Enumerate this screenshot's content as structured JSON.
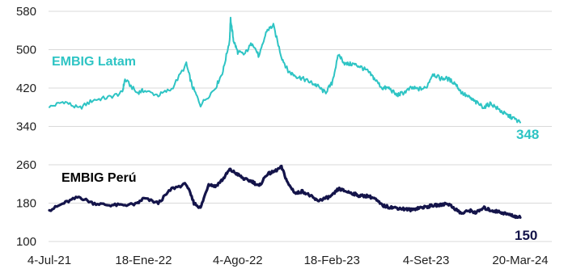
{
  "chart_data": {
    "type": "line",
    "ylim": [
      100,
      580
    ],
    "y_ticks": [
      "580",
      "500",
      "420",
      "340",
      "260",
      "180",
      "100"
    ],
    "x_tick_labels": [
      "4-Jul-21",
      "18-Ene-22",
      "4-Ago-22",
      "18-Feb-23",
      "4-Set-23",
      "20-Mar-24"
    ],
    "grid": true,
    "legend": "inline labels",
    "series": [
      {
        "name": "EMBIG Latam",
        "color": "#2ec4c4",
        "end_label": "348",
        "points": [
          [
            "4-Jul-21",
            380
          ],
          [
            "4-Ago-21",
            392
          ],
          [
            "4-Sep-21",
            377
          ],
          [
            "4-Oct-21",
            395
          ],
          [
            "4-Nov-21",
            400
          ],
          [
            "4-Dic-21",
            410
          ],
          [
            "10-Dic-21",
            438
          ],
          [
            "4-Ene-22",
            410
          ],
          [
            "18-Ene-22",
            415
          ],
          [
            "18-Feb-22",
            405
          ],
          [
            "18-Mar-22",
            418
          ],
          [
            "18-Abr-22",
            470
          ],
          [
            "30-Abr-22",
            425
          ],
          [
            "18-May-22",
            385
          ],
          [
            "18-Jun-22",
            420
          ],
          [
            "4-Jul-22",
            455
          ],
          [
            "18-Jul-22",
            520
          ],
          [
            "20-Jul-22",
            565
          ],
          [
            "26-Jul-22",
            520
          ],
          [
            "4-Ago-22",
            495
          ],
          [
            "18-Ago-22",
            490
          ],
          [
            "4-Sep-22",
            515
          ],
          [
            "18-Sep-22",
            485
          ],
          [
            "4-Oct-22",
            540
          ],
          [
            "18-Oct-22",
            550
          ],
          [
            "4-Nov-22",
            485
          ],
          [
            "18-Nov-22",
            455
          ],
          [
            "4-Dic-22",
            445
          ],
          [
            "18-Dic-22",
            440
          ],
          [
            "4-Ene-23",
            432
          ],
          [
            "18-Ene-23",
            425
          ],
          [
            "4-Feb-23",
            410
          ],
          [
            "18-Feb-23",
            430
          ],
          [
            "4-Mar-23",
            490
          ],
          [
            "18-Mar-23",
            470
          ],
          [
            "4-Abr-23",
            470
          ],
          [
            "18-Abr-23",
            465
          ],
          [
            "4-May-23",
            455
          ],
          [
            "18-May-23",
            440
          ],
          [
            "4-Jun-23",
            420
          ],
          [
            "18-Jun-23",
            420
          ],
          [
            "4-Jul-23",
            405
          ],
          [
            "18-Jul-23",
            410
          ],
          [
            "4-Ago-23",
            420
          ],
          [
            "18-Ago-23",
            418
          ],
          [
            "4-Set-23",
            420
          ],
          [
            "18-Set-23",
            450
          ],
          [
            "4-Oct-23",
            440
          ],
          [
            "18-Oct-23",
            440
          ],
          [
            "4-Nov-23",
            430
          ],
          [
            "18-Nov-23",
            410
          ],
          [
            "4-Dic-23",
            400
          ],
          [
            "18-Dic-23",
            390
          ],
          [
            "4-Ene-24",
            380
          ],
          [
            "18-Ene-24",
            388
          ],
          [
            "4-Feb-24",
            375
          ],
          [
            "18-Feb-24",
            365
          ],
          [
            "4-Mar-24",
            358
          ],
          [
            "20-Mar-24",
            348
          ]
        ]
      },
      {
        "name": "EMBIG Perú",
        "color": "#14144a",
        "end_label": "150",
        "points": [
          [
            "4-Jul-21",
            165
          ],
          [
            "4-Ago-21",
            180
          ],
          [
            "4-Sep-21",
            193
          ],
          [
            "4-Oct-21",
            180
          ],
          [
            "4-Nov-21",
            176
          ],
          [
            "4-Dic-21",
            176
          ],
          [
            "4-Ene-22",
            178
          ],
          [
            "18-Ene-22",
            190
          ],
          [
            "18-Feb-22",
            180
          ],
          [
            "18-Mar-22",
            210
          ],
          [
            "18-Abr-22",
            220
          ],
          [
            "4-May-22",
            180
          ],
          [
            "18-May-22",
            170
          ],
          [
            "4-Jun-22",
            220
          ],
          [
            "18-Jun-22",
            215
          ],
          [
            "4-Jul-22",
            230
          ],
          [
            "18-Jul-22",
            250
          ],
          [
            "4-Ago-22",
            240
          ],
          [
            "18-Ago-22",
            230
          ],
          [
            "4-Sep-22",
            225
          ],
          [
            "18-Sep-22",
            215
          ],
          [
            "4-Oct-22",
            240
          ],
          [
            "18-Oct-22",
            245
          ],
          [
            "4-Nov-22",
            255
          ],
          [
            "18-Nov-22",
            220
          ],
          [
            "4-Dic-22",
            200
          ],
          [
            "18-Dic-22",
            205
          ],
          [
            "4-Ene-23",
            195
          ],
          [
            "18-Ene-23",
            185
          ],
          [
            "4-Feb-23",
            190
          ],
          [
            "18-Feb-23",
            195
          ],
          [
            "4-Mar-23",
            210
          ],
          [
            "18-Mar-23",
            205
          ],
          [
            "4-Abr-23",
            200
          ],
          [
            "18-Abr-23",
            195
          ],
          [
            "4-May-23",
            195
          ],
          [
            "18-May-23",
            190
          ],
          [
            "4-Jun-23",
            175
          ],
          [
            "18-Jun-23",
            172
          ],
          [
            "4-Jul-23",
            170
          ],
          [
            "18-Jul-23",
            168
          ],
          [
            "4-Ago-23",
            166
          ],
          [
            "18-Ago-23",
            170
          ],
          [
            "4-Set-23",
            172
          ],
          [
            "18-Set-23",
            175
          ],
          [
            "4-Oct-23",
            176
          ],
          [
            "18-Oct-23",
            180
          ],
          [
            "4-Nov-23",
            168
          ],
          [
            "18-Nov-23",
            158
          ],
          [
            "4-Dic-23",
            165
          ],
          [
            "18-Dic-23",
            160
          ],
          [
            "4-Ene-24",
            170
          ],
          [
            "18-Ene-24",
            165
          ],
          [
            "4-Feb-24",
            162
          ],
          [
            "18-Feb-24",
            158
          ],
          [
            "4-Mar-24",
            154
          ],
          [
            "20-Mar-24",
            150
          ]
        ]
      }
    ]
  }
}
